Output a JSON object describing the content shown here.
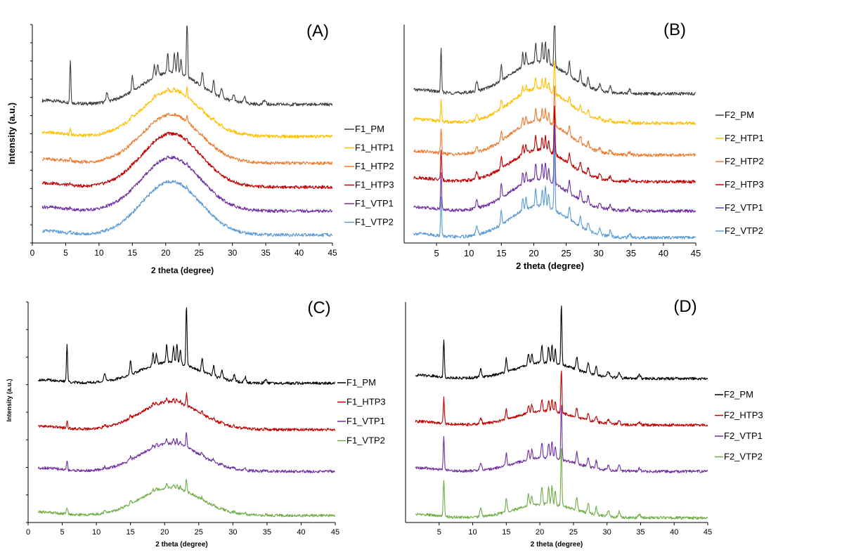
{
  "chart_data": [
    {
      "panel": "(A)",
      "type": "line",
      "xlabel": "2 theta (degree)",
      "ylabel": "Intensity (a.u.)",
      "xlim": [
        0,
        45
      ],
      "xticks": [
        0,
        5,
        10,
        15,
        20,
        25,
        30,
        35,
        40,
        45
      ],
      "legend_position": "right",
      "series": [
        {
          "name": "F1_PM",
          "color": "#404040",
          "offset": 5.2,
          "hump": 1.2,
          "crystallinity": 1.0
        },
        {
          "name": "F1_HTP1",
          "color": "#FFC000",
          "offset": 4.0,
          "hump": 1.7,
          "crystallinity": 0.15
        },
        {
          "name": "F1_HTP2",
          "color": "#ED7D31",
          "offset": 3.0,
          "hump": 1.8,
          "crystallinity": 0.08
        },
        {
          "name": "F1_HTP3",
          "color": "#C00000",
          "offset": 2.1,
          "hump": 2.0,
          "crystallinity": 0.05
        },
        {
          "name": "F1_VTP1",
          "color": "#7030A0",
          "offset": 1.2,
          "hump": 2.0,
          "crystallinity": 0.04
        },
        {
          "name": "F1_VTP2",
          "color": "#5B9BD5",
          "offset": 0.3,
          "hump": 2.0,
          "crystallinity": 0.04
        }
      ]
    },
    {
      "panel": "(B)",
      "type": "line",
      "xlabel": "2 theta (degree)",
      "ylabel": "",
      "xlim": [
        0,
        45
      ],
      "xticks": [
        5,
        10,
        15,
        20,
        25,
        30,
        35,
        40,
        45
      ],
      "legend_position": "right",
      "series": [
        {
          "name": "F2_PM",
          "color": "#404040",
          "offset": 5.6,
          "hump": 1.2,
          "crystallinity": 1.0
        },
        {
          "name": "F2_HTP1",
          "color": "#FFC000",
          "offset": 4.5,
          "hump": 1.3,
          "crystallinity": 0.5
        },
        {
          "name": "F2_HTP2",
          "color": "#ED7D31",
          "offset": 3.3,
          "hump": 1.3,
          "crystallinity": 0.6
        },
        {
          "name": "F2_HTP3",
          "color": "#C00000",
          "offset": 2.3,
          "hump": 1.2,
          "crystallinity": 0.7
        },
        {
          "name": "F2_VTP1",
          "color": "#7030A0",
          "offset": 1.2,
          "hump": 1.2,
          "crystallinity": 0.85
        },
        {
          "name": "F2_VTP2",
          "color": "#5B9BD5",
          "offset": 0.2,
          "hump": 1.2,
          "crystallinity": 0.9
        }
      ]
    },
    {
      "panel": "(C)",
      "type": "line",
      "xlabel": "2 theta (degree)",
      "ylabel": "Intensity (a.u.)",
      "xlim": [
        0,
        45
      ],
      "xticks": [
        0,
        5,
        10,
        15,
        20,
        25,
        30,
        35,
        40,
        45
      ],
      "legend_position": "right",
      "series": [
        {
          "name": "F1_PM",
          "color": "#000000",
          "offset": 6.0,
          "hump": 0.9,
          "crystallinity": 1.0
        },
        {
          "name": "F1_HTP3",
          "color": "#C00000",
          "offset": 4.0,
          "hump": 1.2,
          "crystallinity": 0.2
        },
        {
          "name": "F1_VTP1",
          "color": "#7030A0",
          "offset": 2.2,
          "hump": 1.2,
          "crystallinity": 0.25
        },
        {
          "name": "F1_VTP2",
          "color": "#70AD47",
          "offset": 0.3,
          "hump": 1.2,
          "crystallinity": 0.2
        }
      ]
    },
    {
      "panel": "(D)",
      "type": "line",
      "xlabel": "2 theta (degree)",
      "ylabel": "",
      "xlim": [
        0,
        45
      ],
      "xticks": [
        5,
        10,
        15,
        20,
        25,
        30,
        35,
        40,
        45
      ],
      "legend_position": "right",
      "series": [
        {
          "name": "F2_PM",
          "color": "#000000",
          "offset": 6.2,
          "hump": 0.7,
          "crystallinity": 1.0
        },
        {
          "name": "F2_HTP3",
          "color": "#C00000",
          "offset": 4.2,
          "hump": 0.6,
          "crystallinity": 0.7
        },
        {
          "name": "F2_VTP1",
          "color": "#7030A0",
          "offset": 2.2,
          "hump": 0.6,
          "crystallinity": 0.9
        },
        {
          "name": "F2_VTP2",
          "color": "#70AD47",
          "offset": 0.2,
          "hump": 0.6,
          "crystallinity": 1.0
        }
      ]
    }
  ]
}
